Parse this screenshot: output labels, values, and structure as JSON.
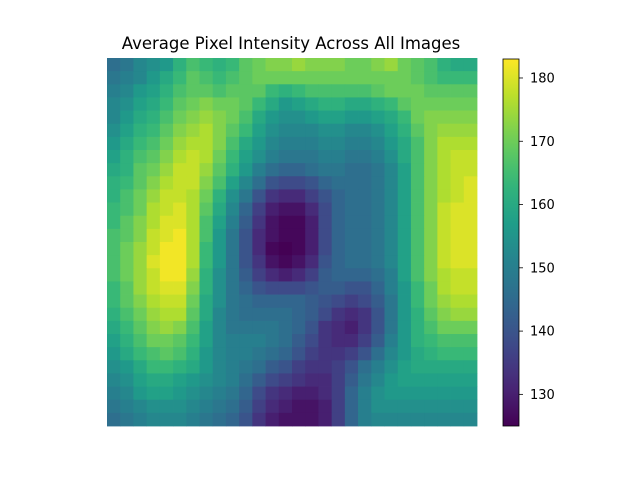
{
  "chart_data": {
    "type": "heatmap",
    "title": "Average Pixel Intensity Across All Images",
    "xlabel": "",
    "ylabel": "",
    "axes_visible": false,
    "grid": false,
    "colormap": "viridis",
    "rows": 28,
    "cols": 28,
    "value_range": [
      125,
      183
    ],
    "colorbar": {
      "ticks": [
        130,
        140,
        150,
        160,
        170,
        180
      ],
      "tick_labels": [
        "130",
        "140",
        "150",
        "160",
        "170",
        "180"
      ],
      "placement": "right"
    },
    "features": {
      "background_mean": 164,
      "bright_blobs": [
        {
          "row": 17,
          "col": 5.5,
          "sigma_row": 5.0,
          "sigma_col": 2.2,
          "peak": 180
        },
        {
          "row": 14,
          "col": 27,
          "sigma_row": 7.0,
          "sigma_col": 2.2,
          "peak": 178
        },
        {
          "row": 2,
          "col": 15,
          "sigma_row": 3.0,
          "sigma_col": 6.0,
          "peak": 172
        }
      ],
      "dark_blobs": [
        {
          "row": 15,
          "col": 13,
          "sigma_row": 3.0,
          "sigma_col": 3.0,
          "peak": 125
        },
        {
          "row": 24,
          "col": 16,
          "sigma_row": 4.0,
          "sigma_col": 3.0,
          "peak": 134
        },
        {
          "row": 21,
          "col": 19,
          "sigma_row": 3.5,
          "sigma_col": 2.0,
          "peak": 138
        }
      ]
    },
    "values": [
      [
        146,
        148,
        152,
        154,
        156,
        162,
        166,
        164,
        162,
        164,
        168,
        170,
        172,
        172,
        174,
        172,
        172,
        172,
        170,
        170,
        172,
        174,
        170,
        168,
        166,
        162,
        160,
        160
      ],
      [
        148,
        150,
        152,
        156,
        160,
        164,
        168,
        166,
        164,
        166,
        168,
        170,
        170,
        170,
        170,
        170,
        170,
        170,
        170,
        170,
        170,
        170,
        170,
        168,
        166,
        164,
        164,
        164
      ],
      [
        150,
        152,
        156,
        158,
        162,
        166,
        168,
        168,
        166,
        168,
        168,
        168,
        164,
        162,
        164,
        166,
        166,
        166,
        166,
        166,
        168,
        170,
        170,
        170,
        168,
        168,
        168,
        168
      ],
      [
        152,
        154,
        158,
        160,
        164,
        168,
        170,
        172,
        170,
        170,
        168,
        164,
        160,
        156,
        158,
        160,
        162,
        162,
        160,
        160,
        162,
        164,
        168,
        170,
        170,
        170,
        170,
        170
      ],
      [
        152,
        156,
        160,
        162,
        166,
        170,
        172,
        174,
        172,
        170,
        166,
        160,
        156,
        154,
        154,
        156,
        158,
        158,
        156,
        156,
        158,
        160,
        164,
        170,
        172,
        172,
        172,
        172
      ],
      [
        154,
        158,
        162,
        164,
        168,
        172,
        174,
        176,
        172,
        168,
        164,
        158,
        154,
        152,
        152,
        152,
        154,
        154,
        152,
        152,
        154,
        158,
        162,
        168,
        172,
        174,
        174,
        174
      ],
      [
        156,
        160,
        164,
        166,
        170,
        174,
        176,
        176,
        172,
        166,
        160,
        156,
        152,
        150,
        150,
        150,
        152,
        152,
        150,
        150,
        152,
        156,
        160,
        166,
        172,
        176,
        176,
        176
      ],
      [
        158,
        162,
        166,
        168,
        172,
        176,
        178,
        176,
        170,
        164,
        158,
        154,
        150,
        148,
        148,
        148,
        150,
        150,
        148,
        148,
        150,
        154,
        160,
        166,
        172,
        176,
        178,
        178
      ],
      [
        160,
        162,
        168,
        170,
        174,
        178,
        178,
        174,
        168,
        162,
        156,
        150,
        146,
        144,
        144,
        146,
        148,
        148,
        146,
        146,
        148,
        152,
        158,
        166,
        172,
        176,
        178,
        178
      ],
      [
        162,
        164,
        168,
        172,
        176,
        178,
        178,
        172,
        166,
        158,
        152,
        146,
        140,
        138,
        138,
        140,
        144,
        146,
        146,
        146,
        148,
        152,
        158,
        166,
        172,
        176,
        178,
        180
      ],
      [
        162,
        166,
        170,
        174,
        178,
        178,
        176,
        170,
        162,
        154,
        148,
        140,
        134,
        132,
        132,
        136,
        140,
        144,
        146,
        146,
        148,
        152,
        158,
        166,
        172,
        176,
        178,
        180
      ],
      [
        164,
        166,
        170,
        176,
        178,
        180,
        176,
        168,
        160,
        152,
        144,
        136,
        130,
        128,
        128,
        132,
        138,
        144,
        146,
        146,
        148,
        152,
        158,
        166,
        172,
        178,
        180,
        180
      ],
      [
        164,
        168,
        172,
        176,
        180,
        180,
        176,
        166,
        158,
        150,
        142,
        134,
        128,
        126,
        126,
        130,
        138,
        144,
        146,
        146,
        148,
        152,
        158,
        166,
        172,
        178,
        180,
        180
      ],
      [
        166,
        168,
        172,
        178,
        180,
        182,
        176,
        166,
        156,
        148,
        140,
        132,
        128,
        126,
        126,
        130,
        138,
        144,
        146,
        146,
        148,
        152,
        158,
        166,
        172,
        178,
        180,
        180
      ],
      [
        166,
        170,
        174,
        178,
        182,
        182,
        176,
        164,
        156,
        148,
        140,
        132,
        126,
        125,
        126,
        130,
        138,
        144,
        146,
        146,
        148,
        152,
        158,
        166,
        172,
        178,
        180,
        180
      ],
      [
        166,
        170,
        174,
        180,
        182,
        182,
        176,
        164,
        156,
        148,
        140,
        134,
        128,
        126,
        128,
        132,
        140,
        144,
        146,
        146,
        148,
        152,
        158,
        166,
        172,
        178,
        180,
        180
      ],
      [
        166,
        170,
        174,
        178,
        182,
        182,
        174,
        162,
        154,
        148,
        142,
        136,
        132,
        130,
        132,
        136,
        142,
        144,
        144,
        144,
        146,
        150,
        158,
        166,
        172,
        176,
        178,
        178
      ],
      [
        164,
        168,
        174,
        178,
        180,
        180,
        172,
        162,
        154,
        148,
        144,
        140,
        138,
        138,
        138,
        140,
        142,
        142,
        140,
        140,
        144,
        150,
        156,
        164,
        170,
        176,
        178,
        178
      ],
      [
        164,
        168,
        172,
        176,
        178,
        178,
        170,
        160,
        154,
        148,
        146,
        144,
        144,
        144,
        144,
        142,
        140,
        138,
        136,
        138,
        142,
        148,
        156,
        164,
        170,
        174,
        176,
        176
      ],
      [
        162,
        166,
        170,
        174,
        176,
        176,
        168,
        160,
        152,
        148,
        146,
        146,
        146,
        146,
        144,
        142,
        138,
        134,
        132,
        134,
        140,
        148,
        156,
        162,
        168,
        172,
        174,
        174
      ],
      [
        160,
        164,
        168,
        172,
        174,
        172,
        166,
        158,
        152,
        148,
        148,
        148,
        148,
        146,
        144,
        140,
        134,
        132,
        130,
        134,
        140,
        148,
        156,
        162,
        166,
        170,
        170,
        170
      ],
      [
        158,
        162,
        166,
        170,
        170,
        168,
        164,
        158,
        152,
        150,
        150,
        150,
        148,
        146,
        142,
        138,
        134,
        132,
        132,
        136,
        142,
        150,
        156,
        162,
        164,
        166,
        166,
        166
      ],
      [
        156,
        160,
        164,
        166,
        168,
        166,
        162,
        156,
        152,
        150,
        150,
        148,
        146,
        144,
        140,
        136,
        134,
        134,
        136,
        140,
        146,
        152,
        156,
        160,
        162,
        164,
        164,
        164
      ],
      [
        154,
        156,
        160,
        164,
        164,
        162,
        160,
        156,
        152,
        150,
        148,
        146,
        142,
        140,
        136,
        134,
        134,
        136,
        140,
        146,
        150,
        154,
        158,
        160,
        160,
        160,
        160,
        160
      ],
      [
        152,
        154,
        158,
        160,
        160,
        158,
        156,
        154,
        152,
        150,
        146,
        142,
        138,
        136,
        134,
        132,
        132,
        136,
        142,
        148,
        152,
        156,
        158,
        158,
        158,
        158,
        158,
        158
      ],
      [
        150,
        152,
        156,
        158,
        158,
        156,
        154,
        152,
        150,
        148,
        144,
        138,
        134,
        132,
        130,
        130,
        132,
        136,
        144,
        150,
        154,
        156,
        156,
        156,
        156,
        156,
        156,
        156
      ],
      [
        148,
        150,
        152,
        154,
        154,
        154,
        152,
        150,
        148,
        146,
        142,
        136,
        132,
        130,
        128,
        128,
        130,
        136,
        144,
        150,
        154,
        154,
        154,
        154,
        154,
        154,
        154,
        154
      ],
      [
        146,
        148,
        150,
        152,
        152,
        152,
        150,
        148,
        146,
        144,
        140,
        134,
        130,
        128,
        128,
        128,
        130,
        136,
        144,
        150,
        152,
        152,
        152,
        152,
        152,
        152,
        152,
        152
      ]
    ]
  }
}
